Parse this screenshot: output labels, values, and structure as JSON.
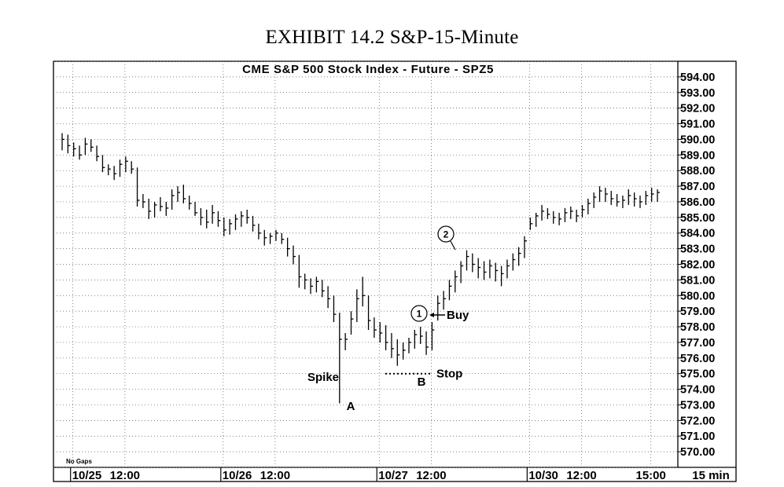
{
  "exhibit_title": "EXHIBIT 14.2 S&P-15-Minute",
  "chart_data": {
    "type": "ohlc",
    "title": "CME S&P 500 Stock Index - Future - SPZ5",
    "interval_label": "15 min",
    "footnote": "No Gaps",
    "ylim": [
      569.0,
      595.0
    ],
    "y_ticks": [
      "594.00",
      "593.00",
      "592.00",
      "591.00",
      "590.00",
      "589.00",
      "588.00",
      "587.00",
      "586.00",
      "585.00",
      "584.00",
      "583.00",
      "582.00",
      "581.00",
      "580.00",
      "579.00",
      "578.00",
      "577.00",
      "576.00",
      "575.00",
      "574.00",
      "573.00",
      "572.00",
      "571.00",
      "570.00"
    ],
    "x_ticks": [
      {
        "label": "10/25",
        "bar": 2,
        "major": true
      },
      {
        "label": "12:00",
        "bar": 11,
        "major": false
      },
      {
        "label": "10/26",
        "bar": 28,
        "major": true
      },
      {
        "label": "12:00",
        "bar": 37,
        "major": false
      },
      {
        "label": "10/27",
        "bar": 55,
        "major": true
      },
      {
        "label": "12:00",
        "bar": 64,
        "major": false
      },
      {
        "label": "10/30",
        "bar": 81,
        "major": true
      },
      {
        "label": "12:00",
        "bar": 90,
        "major": false
      },
      {
        "label": "15:00",
        "bar": 102,
        "major": false
      }
    ],
    "bars_hlc": [
      [
        590.4,
        589.3,
        590.0
      ],
      [
        590.3,
        589.1,
        589.6
      ],
      [
        589.8,
        588.9,
        589.4
      ],
      [
        589.6,
        588.7,
        589.0
      ],
      [
        590.1,
        589.0,
        589.7
      ],
      [
        590.0,
        589.2,
        589.5
      ],
      [
        589.6,
        588.6,
        588.9
      ],
      [
        589.0,
        587.9,
        588.2
      ],
      [
        588.4,
        587.7,
        588.1
      ],
      [
        588.3,
        587.4,
        587.8
      ],
      [
        588.7,
        587.6,
        588.4
      ],
      [
        588.9,
        587.9,
        588.6
      ],
      [
        588.6,
        587.8,
        588.1
      ],
      [
        588.2,
        585.7,
        586.1
      ],
      [
        586.5,
        585.6,
        586.0
      ],
      [
        586.2,
        584.9,
        585.4
      ],
      [
        586.0,
        585.0,
        585.8
      ],
      [
        586.3,
        585.4,
        585.7
      ],
      [
        586.0,
        585.1,
        585.6
      ],
      [
        586.8,
        585.5,
        586.4
      ],
      [
        587.0,
        586.0,
        586.6
      ],
      [
        587.1,
        585.9,
        586.2
      ],
      [
        586.4,
        585.5,
        585.9
      ],
      [
        586.0,
        585.1,
        585.3
      ],
      [
        585.6,
        584.5,
        585.0
      ],
      [
        585.5,
        584.3,
        584.7
      ],
      [
        585.8,
        584.6,
        585.3
      ],
      [
        585.4,
        584.4,
        584.8
      ],
      [
        585.0,
        583.8,
        584.2
      ],
      [
        584.9,
        583.9,
        584.6
      ],
      [
        585.2,
        584.2,
        584.9
      ],
      [
        585.4,
        584.4,
        585.1
      ],
      [
        585.5,
        584.6,
        585.0
      ],
      [
        585.1,
        584.1,
        584.5
      ],
      [
        584.6,
        583.6,
        584.0
      ],
      [
        584.2,
        583.2,
        583.7
      ],
      [
        584.0,
        583.3,
        583.8
      ],
      [
        584.2,
        583.5,
        584.0
      ],
      [
        584.0,
        583.3,
        583.6
      ],
      [
        583.7,
        582.5,
        583.0
      ],
      [
        583.2,
        582.0,
        582.5
      ],
      [
        582.6,
        580.5,
        581.2
      ],
      [
        581.4,
        580.4,
        581.0
      ],
      [
        581.1,
        580.1,
        580.6
      ],
      [
        581.2,
        580.2,
        580.9
      ],
      [
        581.0,
        579.9,
        580.3
      ],
      [
        580.6,
        579.2,
        579.8
      ],
      [
        580.0,
        578.3,
        578.8
      ],
      [
        578.9,
        573.1,
        577.2
      ],
      [
        577.6,
        576.5,
        577.2
      ],
      [
        579.0,
        577.5,
        578.5
      ],
      [
        580.4,
        578.3,
        579.8
      ],
      [
        581.2,
        579.3,
        580.0
      ],
      [
        580.0,
        577.8,
        578.4
      ],
      [
        578.6,
        577.3,
        577.8
      ],
      [
        578.3,
        577.0,
        577.6
      ],
      [
        578.1,
        576.5,
        577.0
      ],
      [
        577.6,
        576.0,
        576.6
      ],
      [
        577.2,
        575.5,
        576.2
      ],
      [
        577.0,
        575.9,
        576.5
      ],
      [
        577.3,
        576.3,
        577.0
      ],
      [
        577.8,
        576.6,
        577.5
      ],
      [
        578.0,
        576.9,
        577.4
      ],
      [
        577.7,
        576.2,
        576.7
      ],
      [
        578.3,
        576.5,
        577.8
      ],
      [
        580.0,
        578.4,
        579.5
      ],
      [
        580.3,
        579.1,
        579.8
      ],
      [
        581.0,
        579.7,
        580.6
      ],
      [
        581.6,
        580.2,
        581.2
      ],
      [
        582.2,
        580.8,
        581.9
      ],
      [
        582.9,
        581.6,
        582.5
      ],
      [
        582.7,
        581.5,
        582.0
      ],
      [
        582.4,
        581.1,
        581.8
      ],
      [
        582.2,
        581.0,
        581.5
      ],
      [
        582.3,
        581.1,
        581.9
      ],
      [
        582.1,
        580.9,
        581.6
      ],
      [
        581.9,
        580.6,
        581.4
      ],
      [
        582.3,
        581.1,
        581.9
      ],
      [
        582.7,
        581.6,
        582.3
      ],
      [
        583.1,
        581.9,
        582.7
      ],
      [
        583.8,
        582.4,
        583.5
      ],
      [
        585.0,
        584.2,
        584.6
      ],
      [
        585.3,
        584.4,
        585.1
      ],
      [
        585.8,
        584.8,
        585.4
      ],
      [
        585.6,
        584.9,
        585.2
      ],
      [
        585.4,
        584.6,
        585.0
      ],
      [
        585.3,
        584.5,
        584.9
      ],
      [
        585.6,
        584.7,
        585.3
      ],
      [
        585.7,
        584.9,
        585.4
      ],
      [
        585.5,
        584.7,
        585.1
      ],
      [
        585.8,
        585.0,
        585.5
      ],
      [
        586.2,
        585.2,
        585.9
      ],
      [
        586.6,
        585.6,
        586.3
      ],
      [
        587.0,
        586.0,
        586.7
      ],
      [
        586.9,
        586.0,
        586.5
      ],
      [
        586.7,
        585.8,
        586.2
      ],
      [
        586.5,
        585.7,
        586.0
      ],
      [
        586.4,
        585.6,
        586.1
      ],
      [
        586.8,
        585.8,
        586.4
      ],
      [
        586.6,
        585.7,
        586.2
      ],
      [
        586.4,
        585.6,
        586.0
      ],
      [
        586.7,
        585.8,
        586.4
      ],
      [
        586.9,
        586.0,
        586.5
      ],
      [
        586.8,
        586.0,
        586.6
      ]
    ],
    "annotations": {
      "spike_label": "Spike",
      "a_label": "A",
      "b_label": "B",
      "stop_label": "Stop",
      "stop_price": 575.0,
      "buy_label": "Buy",
      "circle_1": "1",
      "circle_2": "2"
    }
  }
}
